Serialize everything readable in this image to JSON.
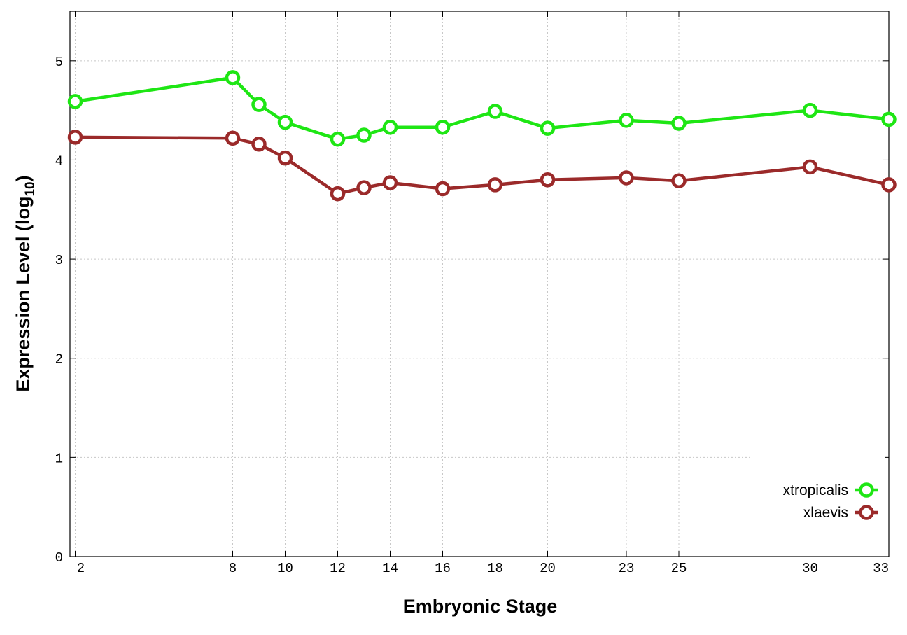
{
  "chart_data": {
    "type": "line",
    "xlabel": "Embryonic Stage",
    "ylabel": "Expression Level (log",
    "ylabel_subscript": "10",
    "ylabel_suffix": ")",
    "x": [
      2,
      8,
      9,
      10,
      12,
      13,
      14,
      16,
      18,
      20,
      23,
      25,
      30,
      33
    ],
    "x_tick_labels": [
      "2",
      "8",
      "10",
      "12",
      "14",
      "16",
      "18",
      "20",
      "23",
      "25",
      "30",
      "33"
    ],
    "x_ticks": [
      2,
      8,
      10,
      12,
      14,
      16,
      18,
      20,
      23,
      25,
      30,
      33
    ],
    "y_ticks": [
      0,
      1,
      2,
      3,
      4,
      5
    ],
    "y_tick_labels": [
      "0",
      "1",
      "2",
      "3",
      "4",
      "5"
    ],
    "xlim": [
      1.8,
      33
    ],
    "ylim": [
      0,
      5.5
    ],
    "grid": true,
    "legend_position": "bottom-right",
    "series": [
      {
        "name": "xtropicalis",
        "color": "#1ee614",
        "values": [
          4.59,
          4.83,
          4.56,
          4.38,
          4.21,
          4.25,
          4.33,
          4.33,
          4.49,
          4.32,
          4.4,
          4.37,
          4.5,
          4.41
        ]
      },
      {
        "name": "xlaevis",
        "color": "#9b2a2a",
        "values": [
          4.23,
          4.22,
          4.16,
          4.02,
          3.66,
          3.72,
          3.77,
          3.71,
          3.75,
          3.8,
          3.82,
          3.79,
          3.93,
          3.75
        ]
      }
    ]
  }
}
